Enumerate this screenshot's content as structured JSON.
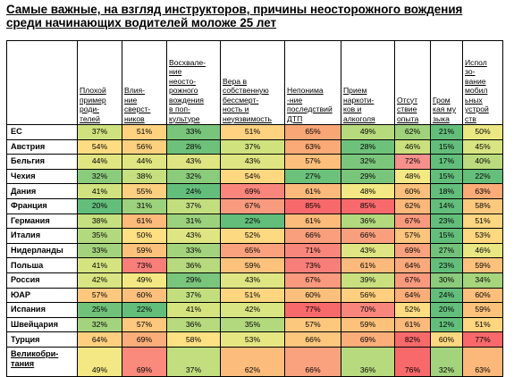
{
  "title_lines": [
    "Самые важные, на взгляд инструкторов, причины неосторожного вождения",
    "среди начинающих водителей моложе 25 лет"
  ],
  "chart_data": {
    "type": "heatmap",
    "columns": [
      "Плохой пример родителей",
      "Влияние сверстников",
      "Восхваление неосторожного вождения в поп-культуре",
      "Вера в собственную бессмертность и неуязвимость",
      "Непонимание последствий ДТП",
      "Прием наркотиков и алкоголя",
      "Отсутствие опыта",
      "Громкая музыка",
      "Использование мобильных устройств"
    ],
    "column_header_lines": [
      [
        "Плохой",
        "пример",
        "роди-",
        "телей"
      ],
      [
        "Влия-",
        "ние",
        "сверст-",
        "ников"
      ],
      [
        "Восхвале-",
        "ние",
        "неосто-",
        "рожного",
        "вождения",
        "в поп-",
        "культуре"
      ],
      [
        "Вера в",
        "собственную",
        "бессмерт-",
        "ность и",
        "неуязвимость"
      ],
      [
        "Непонима",
        "-ние",
        "последствий",
        "ДТП"
      ],
      [
        "Прием",
        "наркоти-",
        "ков и",
        "алкоголя"
      ],
      [
        "Отсут",
        "ствие",
        "опыта"
      ],
      [
        "Гром",
        "кая му",
        "зыка"
      ],
      [
        "Испол",
        "зо-",
        "вание",
        "мобил",
        "ьных",
        "устрой",
        "ств"
      ]
    ],
    "rows": [
      {
        "country": "ЕС",
        "values": [
          37,
          51,
          33,
          51,
          65,
          49,
          62,
          21,
          50
        ],
        "colors": [
          "#cfe27d",
          "#fed280",
          "#79c57b",
          "#fed280",
          "#f8a676",
          "#b7da7d",
          "#9fd27b",
          "#63be7b",
          "#ebe883"
        ]
      },
      {
        "country": "Австрия",
        "values": [
          54,
          56,
          28,
          37,
          63,
          28,
          46,
          15,
          45
        ],
        "colors": [
          "#fedc81",
          "#fdd07f",
          "#6ec17a",
          "#cfe27d",
          "#f9aa77",
          "#6ec17a",
          "#cae07d",
          "#63be7b",
          "#d8e582"
        ]
      },
      {
        "country": "Бельгия",
        "values": [
          44,
          44,
          43,
          43,
          57,
          32,
          72,
          17,
          40
        ],
        "colors": [
          "#e1e682",
          "#e1e682",
          "#deE582",
          "#dee582",
          "#fcc07c",
          "#7bc67c",
          "#f6908c",
          "#63be7b",
          "#bcdb7e"
        ]
      },
      {
        "country": "Чехия",
        "values": [
          32,
          38,
          32,
          54,
          27,
          29,
          48,
          15,
          22
        ],
        "colors": [
          "#8bcb7c",
          "#c6df7f",
          "#8bcb7c",
          "#fdd880",
          "#6cc17b",
          "#7ac57c",
          "#f3e884",
          "#63be7b",
          "#65bf7b"
        ]
      },
      {
        "country": "Дания",
        "values": [
          41,
          55,
          24,
          69,
          61,
          48,
          60,
          18,
          63
        ],
        "colors": [
          "#cfe27f",
          "#fcd080",
          "#63be7b",
          "#f8867c",
          "#fbba7b",
          "#f3e884",
          "#fcc07c",
          "#63be7b",
          "#faab77"
        ]
      },
      {
        "country": "Франция",
        "values": [
          20,
          31,
          37,
          67,
          85,
          85,
          62,
          14,
          58
        ],
        "colors": [
          "#63be7b",
          "#9cd27d",
          "#c2de7f",
          "#f89a7e",
          "#f8696b",
          "#f8696b",
          "#fbb87a",
          "#63be7b",
          "#fcc87e"
        ]
      },
      {
        "country": "Германия",
        "values": [
          38,
          61,
          31,
          22,
          61,
          36,
          67,
          23,
          51
        ],
        "colors": [
          "#c6df7f",
          "#fdbb7b",
          "#9cd27d",
          "#63be7b",
          "#fdbb7b",
          "#b3d97e",
          "#f99a7e",
          "#63be7b",
          "#fcd680"
        ]
      },
      {
        "country": "Италия",
        "values": [
          35,
          50,
          43,
          52,
          66,
          66,
          57,
          15,
          53
        ],
        "colors": [
          "#b3d97e",
          "#fedf82",
          "#deE582",
          "#fdda81",
          "#f99f7e",
          "#f99f7e",
          "#fcc47c",
          "#63be7b",
          "#fdd880"
        ]
      },
      {
        "country": "Нидерланды",
        "values": [
          33,
          59,
          33,
          65,
          71,
          43,
          69,
          27,
          46
        ],
        "colors": [
          "#a4d37d",
          "#fcc27c",
          "#a4d37d",
          "#faa27e",
          "#f8867c",
          "#deE582",
          "#f9a27e",
          "#72c27b",
          "#e9e784"
        ]
      },
      {
        "country": "Польша",
        "values": [
          41,
          73,
          36,
          59,
          73,
          61,
          64,
          23,
          59
        ],
        "colors": [
          "#d6e480",
          "#f77e79",
          "#b7da7e",
          "#fcc27c",
          "#f77e79",
          "#fbba7b",
          "#faa97c",
          "#63be7b",
          "#fcc27c"
        ]
      },
      {
        "country": "Россия",
        "values": [
          42,
          49,
          29,
          43,
          67,
          39,
          67,
          30,
          34
        ],
        "colors": [
          "#d8e582",
          "#f4e884",
          "#7ac57c",
          "#dee582",
          "#f99a7e",
          "#cae07f",
          "#f99a7e",
          "#8bcb7c",
          "#a7d57d"
        ]
      },
      {
        "country": "ЮАР",
        "values": [
          57,
          60,
          37,
          51,
          60,
          56,
          64,
          24,
          60
        ],
        "colors": [
          "#fcc87e",
          "#fcc07c",
          "#c2de7f",
          "#fed680",
          "#fcc07c",
          "#fdcf7f",
          "#fbae7a",
          "#63be7b",
          "#fcc07c"
        ]
      },
      {
        "country": "Испания",
        "values": [
          25,
          22,
          41,
          42,
          77,
          70,
          52,
          20,
          59
        ],
        "colors": [
          "#70c27b",
          "#63be7b",
          "#d6e480",
          "#d8e582",
          "#f8696b",
          "#f8867c",
          "#fedc81",
          "#63be7b",
          "#fcc27c"
        ]
      },
      {
        "country": "Швейцария",
        "values": [
          32,
          57,
          36,
          35,
          57,
          59,
          61,
          12,
          51
        ],
        "colors": [
          "#a4d37d",
          "#fcc87e",
          "#b7da7e",
          "#b3d97e",
          "#fcc87e",
          "#fcc27c",
          "#fbba7b",
          "#63be7b",
          "#fed680"
        ]
      },
      {
        "country": "Турция",
        "values": [
          64,
          69,
          58,
          53,
          66,
          69,
          82,
          60,
          77
        ],
        "colors": [
          "#fdcf7f",
          "#fbae7a",
          "#fee182",
          "#e6e783",
          "#fdc87e",
          "#fbae7a",
          "#f8696b",
          "#fed880",
          "#f8696b"
        ]
      },
      {
        "country": "Великобритания",
        "country_lines": [
          "Великобри-",
          "тания"
        ],
        "values": [
          49,
          69,
          37,
          62,
          66,
          36,
          76,
          32,
          63
        ],
        "colors": [
          "#f4e884",
          "#f98a7c",
          "#c2de7f",
          "#fcbd7c",
          "#faa27e",
          "#b7da7e",
          "#f8696b",
          "#a4d37d",
          "#fbb87a"
        ]
      }
    ],
    "value_suffix": "%"
  }
}
